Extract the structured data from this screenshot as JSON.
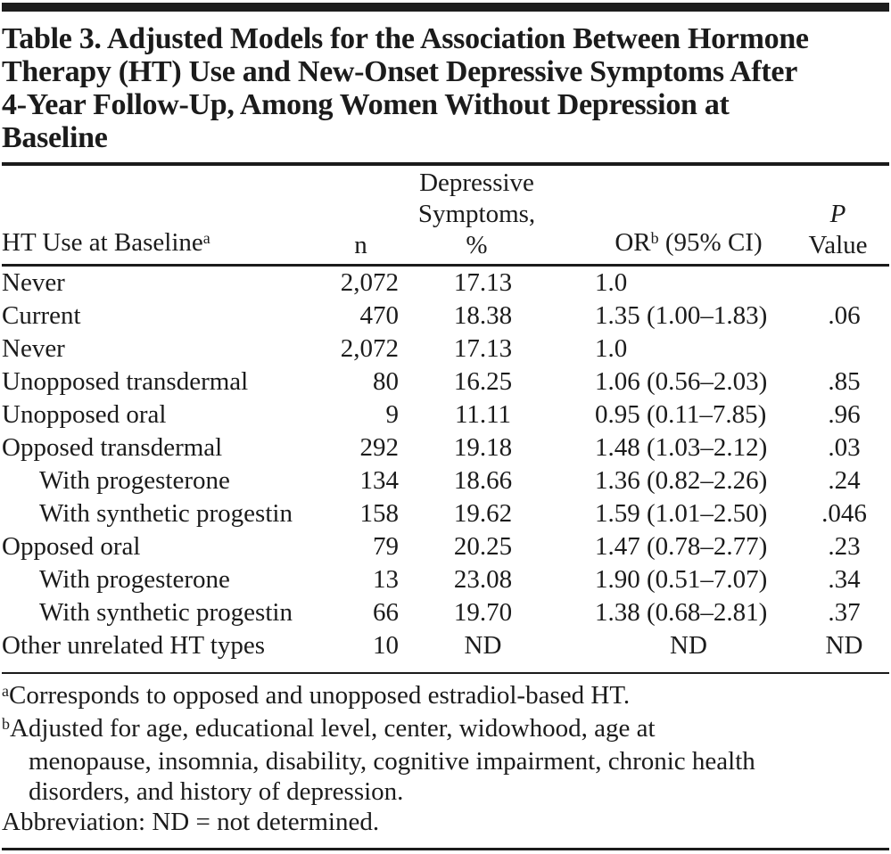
{
  "title_lines": [
    "Table 3. Adjusted Models for the Association Between Hormone",
    "Therapy (HT) Use and New-Onset Depressive Symptoms After",
    "4-Year Follow-Up, Among Women Without Depression at",
    "Baseline"
  ],
  "header": {
    "col1": "HT Use at Baseline",
    "col1_sup": "a",
    "col2": "n",
    "col3_lines": [
      "Depressive",
      "Symptoms,",
      "%"
    ],
    "col4": "OR",
    "col4_sup": "b",
    "col4_rest": " (95% CI)",
    "col5_lines": [
      "P",
      "Value"
    ]
  },
  "rows": [
    {
      "label": "Never",
      "n": "2,072",
      "pct": "17.13",
      "or": "1.0",
      "p": ""
    },
    {
      "label": "Current",
      "n": "470",
      "pct": "18.38",
      "or": "1.35 (1.00–1.83)",
      "p": ".06"
    },
    {
      "label": "Never",
      "n": "2,072",
      "pct": "17.13",
      "or": "1.0",
      "p": ""
    },
    {
      "label": "Unopposed transdermal",
      "n": "80",
      "pct": "16.25",
      "or": "1.06 (0.56–2.03)",
      "p": ".85"
    },
    {
      "label": "Unopposed oral",
      "n": "9",
      "pct": "11.11",
      "or": "0.95 (0.11–7.85)",
      "p": ".96"
    },
    {
      "label": "Opposed transdermal",
      "n": "292",
      "pct": "19.18",
      "or": "1.48 (1.03–2.12)",
      "p": ".03"
    },
    {
      "label": "With progesterone",
      "n": "134",
      "pct": "18.66",
      "or": "1.36 (0.82–2.26)",
      "p": ".24"
    },
    {
      "label": "With synthetic progestin",
      "n": "158",
      "pct": "19.62",
      "or": "1.59 (1.01–2.50)",
      "p": ".046"
    },
    {
      "label": "Opposed oral",
      "n": "79",
      "pct": "20.25",
      "or": "1.47 (0.78–2.77)",
      "p": ".23"
    },
    {
      "label": "With progesterone",
      "n": "13",
      "pct": "23.08",
      "or": "1.90 (0.51–7.07)",
      "p": ".34"
    },
    {
      "label": "With synthetic progestin",
      "n": "66",
      "pct": "19.70",
      "or": "1.38 (0.68–2.81)",
      "p": ".37"
    },
    {
      "label": "Other unrelated HT types",
      "n": "10",
      "pct": "ND",
      "or": "ND",
      "p": "ND"
    }
  ],
  "footnotes": {
    "a_sup": "a",
    "a_text": "Corresponds to opposed and unopposed estradiol-based HT.",
    "b_sup": "b",
    "b_lines": [
      "Adjusted for age, educational level, center, widowhood, age at",
      "menopause, insomnia, disability, cognitive impairment, chronic health",
      "disorders, and history of depression."
    ],
    "abbreviation": "Abbreviation: ND = not determined."
  }
}
